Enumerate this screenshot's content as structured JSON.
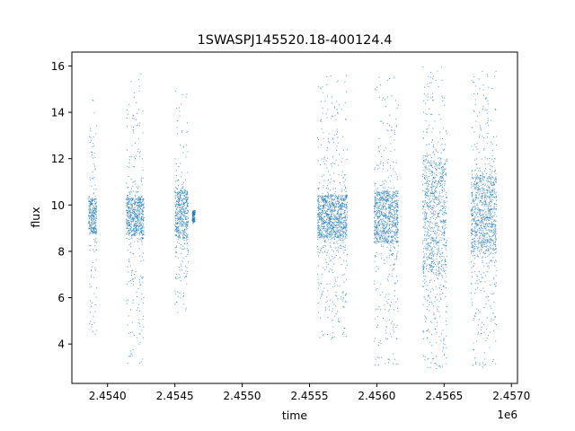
{
  "chart_data": {
    "type": "scatter",
    "title": "1SWASPJ145520.18-400124.4",
    "xlabel": "time",
    "ylabel": "flux",
    "x_offset_label": "1e6",
    "xlim": [
      2453735,
      2457045
    ],
    "ylim": [
      2.3,
      16.6
    ],
    "x_ticks": [
      {
        "value": 2454000,
        "label": "2.4540"
      },
      {
        "value": 2454500,
        "label": "2.4545"
      },
      {
        "value": 2455000,
        "label": "2.4550"
      },
      {
        "value": 2455500,
        "label": "2.4555"
      },
      {
        "value": 2456000,
        "label": "2.4560"
      },
      {
        "value": 2456500,
        "label": "2.4565"
      },
      {
        "value": 2457000,
        "label": "2.4570"
      }
    ],
    "y_ticks": [
      {
        "value": 4,
        "label": "4"
      },
      {
        "value": 6,
        "label": "6"
      },
      {
        "value": 8,
        "label": "8"
      },
      {
        "value": 10,
        "label": "10"
      },
      {
        "value": 12,
        "label": "12"
      },
      {
        "value": 14,
        "label": "14"
      },
      {
        "value": 16,
        "label": "16"
      }
    ],
    "grid": false,
    "legend": "none",
    "marker_color": "#1f77b4",
    "series": [
      {
        "clusters": [
          {
            "x_start": 2453860,
            "x_end": 2453920,
            "core_low": 8.8,
            "core_high": 10.3,
            "min": 4.3,
            "max": 14.8
          },
          {
            "x_start": 2454140,
            "x_end": 2454270,
            "core_low": 8.7,
            "core_high": 10.3,
            "min": 3.1,
            "max": 15.7
          },
          {
            "x_start": 2454500,
            "x_end": 2454600,
            "core_low": 8.6,
            "core_high": 10.6,
            "min": 5.3,
            "max": 15.3
          },
          {
            "x_start": 2454630,
            "x_end": 2454650,
            "core_low": 9.3,
            "core_high": 9.7,
            "min": 9.2,
            "max": 9.8
          },
          {
            "x_start": 2455560,
            "x_end": 2455780,
            "core_low": 8.6,
            "core_high": 10.4,
            "min": 4.2,
            "max": 15.6
          },
          {
            "x_start": 2455980,
            "x_end": 2456160,
            "core_low": 8.4,
            "core_high": 10.6,
            "min": 3.0,
            "max": 15.8
          },
          {
            "x_start": 2456340,
            "x_end": 2456520,
            "core_low": 7.2,
            "core_high": 11.8,
            "min": 2.9,
            "max": 16.0
          },
          {
            "x_start": 2456700,
            "x_end": 2456890,
            "core_low": 8.0,
            "core_high": 11.2,
            "min": 3.0,
            "max": 15.8
          }
        ]
      }
    ]
  }
}
